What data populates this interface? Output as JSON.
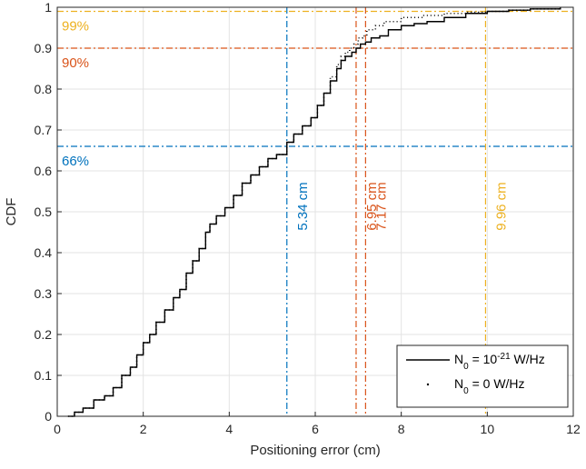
{
  "chart_data": {
    "type": "line",
    "xlabel": "Positioning error (cm)",
    "ylabel": "CDF",
    "xlim": [
      0,
      12
    ],
    "ylim": [
      0,
      1
    ],
    "grid": true,
    "xticks": [
      "0",
      "2",
      "4",
      "6",
      "8",
      "10",
      "12"
    ],
    "yticks": [
      "0",
      "0.1",
      "0.2",
      "0.3",
      "0.4",
      "0.5",
      "0.6",
      "0.7",
      "0.8",
      "0.9",
      "1"
    ],
    "legend_position": "bottom-right",
    "series": [
      {
        "name_parts": [
          "N",
          "0",
          " = 10",
          "-21",
          " W/Hz"
        ],
        "style": "solid",
        "color": "#000000",
        "x": [
          0.25,
          0.4,
          0.6,
          0.85,
          1.1,
          1.3,
          1.5,
          1.7,
          1.85,
          2.0,
          2.15,
          2.3,
          2.5,
          2.7,
          2.85,
          3.0,
          3.15,
          3.3,
          3.45,
          3.55,
          3.7,
          3.9,
          4.1,
          4.3,
          4.5,
          4.7,
          4.9,
          5.1,
          5.34,
          5.5,
          5.7,
          5.9,
          6.05,
          6.2,
          6.35,
          6.5,
          6.6,
          6.7,
          6.85,
          6.95,
          7.05,
          7.17,
          7.3,
          7.5,
          7.7,
          8.0,
          8.3,
          8.6,
          9.0,
          9.5,
          10.0,
          10.5,
          11.0,
          11.7
        ],
        "y": [
          0.0,
          0.01,
          0.02,
          0.04,
          0.05,
          0.07,
          0.1,
          0.12,
          0.15,
          0.18,
          0.2,
          0.23,
          0.26,
          0.29,
          0.31,
          0.35,
          0.38,
          0.41,
          0.45,
          0.47,
          0.49,
          0.51,
          0.54,
          0.57,
          0.59,
          0.61,
          0.63,
          0.64,
          0.67,
          0.69,
          0.71,
          0.73,
          0.76,
          0.79,
          0.82,
          0.85,
          0.87,
          0.88,
          0.89,
          0.9,
          0.91,
          0.915,
          0.925,
          0.93,
          0.945,
          0.955,
          0.96,
          0.965,
          0.975,
          0.985,
          0.99,
          0.993,
          0.996,
          1.0
        ]
      },
      {
        "name_parts": [
          "N",
          "0",
          " = 0 W/Hz"
        ],
        "style": "dotted",
        "color": "#000000",
        "x": [
          0.25,
          0.4,
          0.6,
          0.85,
          1.1,
          1.3,
          1.5,
          1.7,
          1.85,
          2.0,
          2.15,
          2.3,
          2.5,
          2.7,
          2.85,
          3.0,
          3.15,
          3.3,
          3.45,
          3.55,
          3.7,
          3.9,
          4.1,
          4.3,
          4.5,
          4.7,
          4.9,
          5.1,
          5.34,
          5.5,
          5.7,
          5.9,
          6.05,
          6.2,
          6.35,
          6.5,
          6.6,
          6.7,
          6.8,
          6.9,
          7.0,
          7.1,
          7.2,
          7.4,
          7.6,
          8.0,
          8.5,
          9.0,
          9.5,
          9.96,
          10.5,
          11.0,
          11.7
        ],
        "y": [
          0.0,
          0.01,
          0.02,
          0.04,
          0.05,
          0.07,
          0.1,
          0.12,
          0.15,
          0.18,
          0.2,
          0.23,
          0.26,
          0.29,
          0.31,
          0.35,
          0.38,
          0.41,
          0.45,
          0.47,
          0.49,
          0.51,
          0.54,
          0.57,
          0.59,
          0.61,
          0.63,
          0.64,
          0.67,
          0.69,
          0.71,
          0.73,
          0.76,
          0.79,
          0.83,
          0.86,
          0.88,
          0.89,
          0.9,
          0.91,
          0.925,
          0.93,
          0.945,
          0.955,
          0.965,
          0.975,
          0.98,
          0.985,
          0.988,
          0.99,
          0.993,
          0.996,
          1.0
        ]
      }
    ],
    "reference_lines": [
      {
        "axis": "y",
        "value": 0.99,
        "label": "99%",
        "color": "#EDB120"
      },
      {
        "axis": "y",
        "value": 0.9,
        "label": "90%",
        "color": "#D95319"
      },
      {
        "axis": "y",
        "value": 0.66,
        "label": "66%",
        "color": "#0072BD"
      },
      {
        "axis": "x",
        "value": 5.34,
        "label": "5.34 cm",
        "color": "#0072BD"
      },
      {
        "axis": "x",
        "value": 6.95,
        "label": "6.95 cm",
        "color": "#D95319"
      },
      {
        "axis": "x",
        "value": 7.17,
        "label": "7.17 cm",
        "color": "#D95319"
      },
      {
        "axis": "x",
        "value": 9.96,
        "label": "9.96 cm",
        "color": "#EDB120"
      }
    ]
  }
}
